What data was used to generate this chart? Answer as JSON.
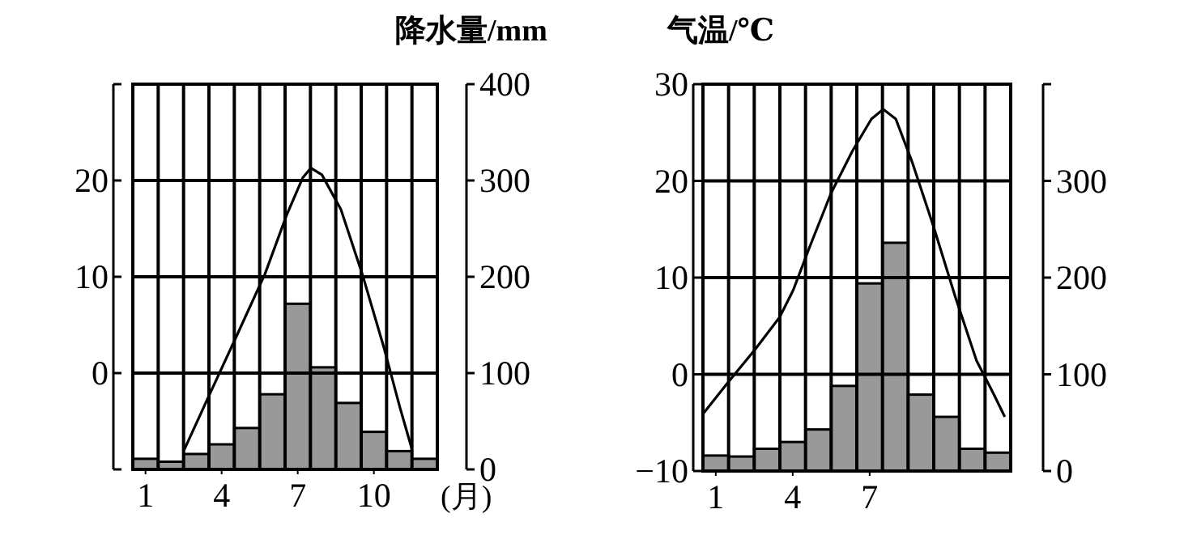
{
  "chart_data": [
    {
      "type": "bar",
      "y2label": "降水量/mm",
      "xlabel": "(月)",
      "xlim": [
        0.5,
        12.5
      ],
      "xticks": [
        {
          "value": 0.5,
          "label": null
        },
        1,
        {
          "value": 1.5,
          "label": null
        },
        {
          "value": 2.5,
          "label": null
        },
        {
          "value": 3.5,
          "label": null
        },
        4,
        {
          "value": 4.5,
          "label": null
        },
        {
          "value": 5.5,
          "label": null
        },
        {
          "value": 6.5,
          "label": null
        },
        7,
        {
          "value": 7.5,
          "label": null
        },
        {
          "value": 8.5,
          "label": null
        },
        {
          "value": 9.5,
          "label": null
        },
        10,
        {
          "value": 10.5,
          "label": null
        },
        {
          "value": 11.5,
          "label": null
        },
        {
          "value": 12.5,
          "label": null
        }
      ],
      "ylim": [
        -10,
        30
      ],
      "yticks": [
        {
          "value": -10,
          "label": null
        },
        0,
        10,
        20,
        {
          "value": 30,
          "label": null
        }
      ],
      "y2lim": [
        0,
        400
      ],
      "y2ticks": [
        0,
        100,
        200,
        300,
        400
      ],
      "grid": true,
      "series": [
        {
          "axis": "y2",
          "color": "#999999",
          "x": [
            1,
            2,
            3,
            4,
            5,
            6,
            7,
            8,
            9,
            10,
            11,
            12
          ],
          "values": [
            11,
            8,
            16,
            26,
            43,
            78,
            172,
            106,
            69,
            39,
            19,
            11
          ]
        },
        {
          "type": "line",
          "color": "#000000",
          "x": [
            2.52,
            3.58,
            4.65,
            5.71,
            6.56,
            7.2,
            7.52,
            7.95,
            8.7,
            9.54,
            10.4,
            11.03,
            11.5
          ],
          "values": [
            -8,
            -1.9,
            4.2,
            10.3,
            16.4,
            20.3,
            21.3,
            20.6,
            17,
            10.3,
            2.6,
            -3.6,
            -7.9
          ]
        }
      ]
    },
    {
      "type": "bar",
      "ylabel": "气温/℃",
      "xlim": [
        0.5,
        12.5
      ],
      "xticks": [
        {
          "value": 0.5,
          "label": null
        },
        1,
        {
          "value": 1.5,
          "label": null
        },
        {
          "value": 2.5,
          "label": null
        },
        {
          "value": 3.5,
          "label": null
        },
        4,
        {
          "value": 4.5,
          "label": null
        },
        {
          "value": 5.5,
          "label": null
        },
        {
          "value": 6.5,
          "label": null
        },
        7,
        {
          "value": 7.5,
          "label": null
        },
        {
          "value": 8.5,
          "label": null
        },
        {
          "value": 9.5,
          "label": null
        },
        {
          "value": 10.5,
          "label": null
        },
        {
          "value": 11.5,
          "label": null
        },
        {
          "value": 12.5,
          "label": null
        }
      ],
      "ylim": [
        -10,
        30
      ],
      "yticks": [
        -10,
        0,
        10,
        20,
        30
      ],
      "y2lim": [
        0,
        400
      ],
      "y2ticks": [
        0,
        100,
        200,
        300,
        {
          "value": 400,
          "label": null
        }
      ],
      "grid": true,
      "series": [
        {
          "axis": "y2",
          "color": "#999999",
          "x": [
            1,
            2,
            3,
            4,
            5,
            6,
            7,
            8,
            9,
            10,
            11,
            12
          ],
          "values": [
            16,
            15,
            23,
            30,
            43,
            88,
            194,
            236,
            79,
            56,
            23,
            19
          ]
        },
        {
          "type": "line",
          "color": "#000000",
          "x": [
            0.5,
            1.49,
            2.54,
            3.49,
            4.02,
            4.65,
            5.49,
            6.33,
            7.07,
            7.53,
            8.02,
            8.65,
            9.49,
            10.33,
            11.17,
            11.81,
            12.27
          ],
          "values": [
            -4.1,
            -0.8,
            2.6,
            5.9,
            8.7,
            13.1,
            18.7,
            23.1,
            26.4,
            27.4,
            26.4,
            22,
            15.3,
            8.1,
            1.4,
            -1.9,
            -4.4
          ]
        }
      ]
    }
  ]
}
